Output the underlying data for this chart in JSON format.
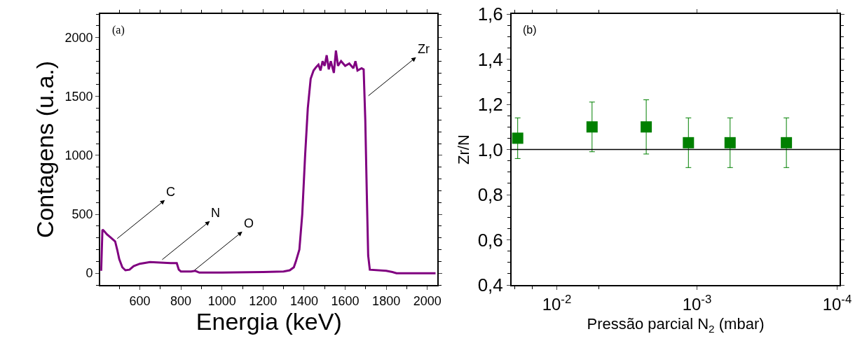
{
  "chart_data": [
    {
      "type": "line",
      "xlabel": "Energia (keV)",
      "ylabel": "Contagens (u.a.)",
      "x": [
        412,
        418,
        425,
        440,
        460,
        480,
        490,
        500,
        515,
        530,
        550,
        570,
        600,
        650,
        700,
        750,
        780,
        790,
        800,
        850,
        870,
        890,
        1000,
        1200,
        1300,
        1330,
        1350,
        1360,
        1377,
        1391,
        1405,
        1418,
        1432,
        1446,
        1459,
        1470,
        1480,
        1490,
        1500,
        1510,
        1520,
        1530,
        1545,
        1555,
        1565,
        1580,
        1600,
        1620,
        1640,
        1650,
        1660,
        1680,
        1690,
        1698,
        1705,
        1712,
        1720,
        1800,
        1830,
        1850,
        2000,
        2040
      ],
      "series": [
        {
          "color": "#800080",
          "values": [
            20,
            370,
            360,
            330,
            300,
            270,
            200,
            120,
            50,
            25,
            30,
            60,
            80,
            95,
            90,
            85,
            85,
            30,
            15,
            15,
            20,
            5,
            5,
            10,
            15,
            25,
            50,
            100,
            200,
            500,
            1000,
            1400,
            1650,
            1720,
            1750,
            1770,
            1720,
            1800,
            1760,
            1850,
            1730,
            1800,
            1700,
            1890,
            1760,
            1800,
            1760,
            1780,
            1740,
            1800,
            1720,
            1740,
            1730,
            1300,
            700,
            150,
            30,
            20,
            10,
            0,
            0,
            0
          ]
        }
      ],
      "xlim": [
        408,
        2050
      ],
      "xticks": [
        600,
        800,
        1000,
        1200,
        1400,
        1600,
        1800,
        2000
      ],
      "ylim": [
        -100,
        2200
      ],
      "yticks": [
        0,
        500,
        1000,
        1500,
        2000
      ],
      "annotations": [
        "(a)",
        {
          "text": "C",
          "x": 490,
          "y": 294
        },
        {
          "text": "N",
          "x": 709,
          "y": 115
        },
        {
          "text": "O",
          "x": 867,
          "y": 26
        },
        {
          "text": "Zr",
          "x": 1713,
          "y": 1506
        }
      ]
    },
    {
      "type": "scatter",
      "xlabel": "Pressão parcial N$_{2}$ (mbar)",
      "ylabel": "Zr/N",
      "x": [
        0.019,
        0.0056,
        0.0023,
        0.00115,
        0.00058,
        0.00023
      ],
      "series": [
        {
          "color": "#008000",
          "values": [
            1.05,
            1.1,
            1.1,
            1.03,
            1.03,
            1.03
          ],
          "errors": [
            [
              0.96,
              1.14
            ],
            [
              0.99,
              1.21
            ],
            [
              0.98,
              1.22
            ],
            [
              0.92,
              1.14
            ],
            [
              0.92,
              1.14
            ],
            [
              0.92,
              1.14
            ]
          ]
        }
      ],
      "marker": "square",
      "log": "x",
      "xlim": [
        0.021,
        9.6e-05
      ],
      "xticks": [
        {
          "value": 0.01,
          "label": "10$^{-2}$"
        },
        {
          "value": 0.001,
          "label": "10$^{-3}$"
        },
        {
          "value": 0.0001,
          "label": "10$^{-4}$"
        }
      ],
      "ylim": [
        0.4,
        1.6
      ],
      "yticks": [
        {
          "value": 0.4,
          "label": "0,4"
        },
        {
          "value": 0.6,
          "label": "0,6"
        },
        {
          "value": 0.8,
          "label": "0,8"
        },
        {
          "value": 1.0,
          "label": "1,0"
        },
        {
          "value": 1.2,
          "label": "1,2"
        },
        {
          "value": 1.4,
          "label": "1,4"
        },
        {
          "value": 1.6,
          "label": "1,6"
        }
      ],
      "ref_lines": [
        {
          "axis": "y",
          "value": 1.0,
          "color": "#000000",
          "line_style": "solid"
        }
      ],
      "annotations": [
        "(b)"
      ]
    }
  ]
}
